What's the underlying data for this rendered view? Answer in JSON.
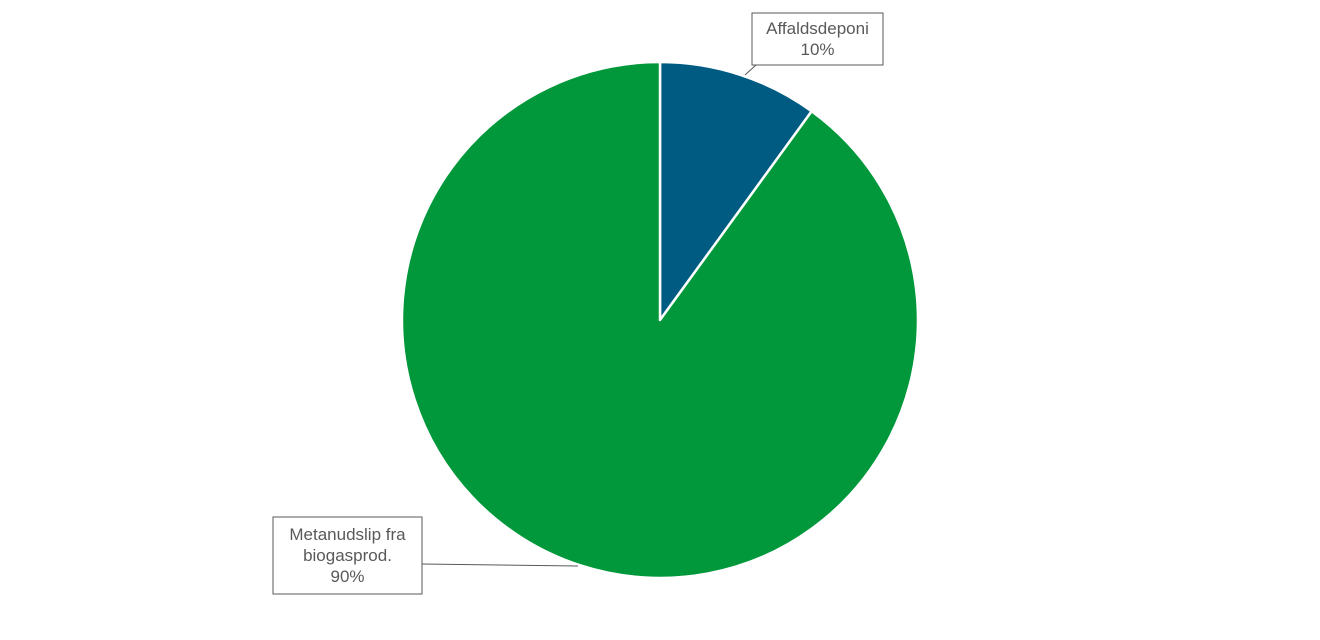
{
  "chart_data": {
    "type": "pie",
    "title": "",
    "slices": [
      {
        "label_lines": [
          "Affaldsdeponi"
        ],
        "value": 10,
        "percent_label": "10%",
        "color": "#005B82"
      },
      {
        "label_lines": [
          "Metanudslip fra",
          "biogasprod."
        ],
        "value": 90,
        "percent_label": "90%",
        "color": "#00983A"
      }
    ],
    "start_angle": "12 o'clock",
    "direction": "clockwise",
    "legend": "none",
    "data_labels": "callouts"
  }
}
